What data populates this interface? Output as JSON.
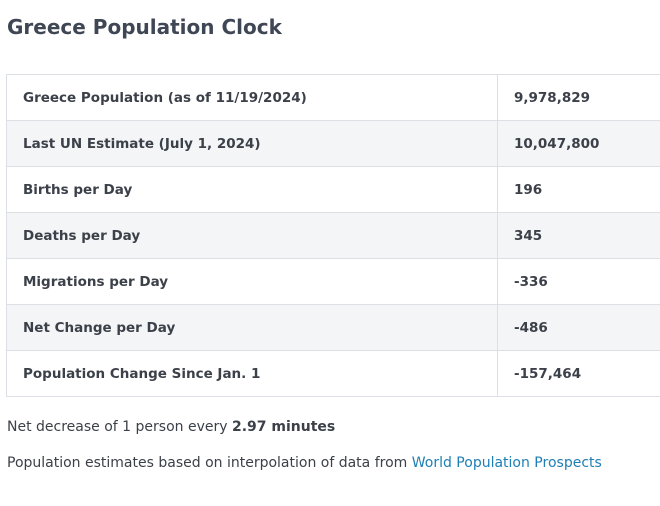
{
  "title": "Greece Population Clock",
  "stats": [
    {
      "label": "Greece Population (as of 11/19/2024)",
      "value": "9,978,829"
    },
    {
      "label": "Last UN Estimate (July 1, 2024)",
      "value": "10,047,800"
    },
    {
      "label": "Births per Day",
      "value": "196"
    },
    {
      "label": "Deaths per Day",
      "value": "345"
    },
    {
      "label": "Migrations per Day",
      "value": "-336"
    },
    {
      "label": "Net Change per Day",
      "value": "-486"
    },
    {
      "label": "Population Change Since Jan. 1",
      "value": "-157,464"
    }
  ],
  "rate_note": {
    "prefix": "Net decrease of 1 person every ",
    "value": "2.97 minutes"
  },
  "source_note": {
    "prefix": "Population estimates based on interpolation of data from ",
    "link": "World Population Prospects"
  },
  "colors": {
    "text": "#3b4049",
    "link": "#1e7fb5",
    "row_alt": "#f4f5f7",
    "border": "#dcdfe3"
  }
}
